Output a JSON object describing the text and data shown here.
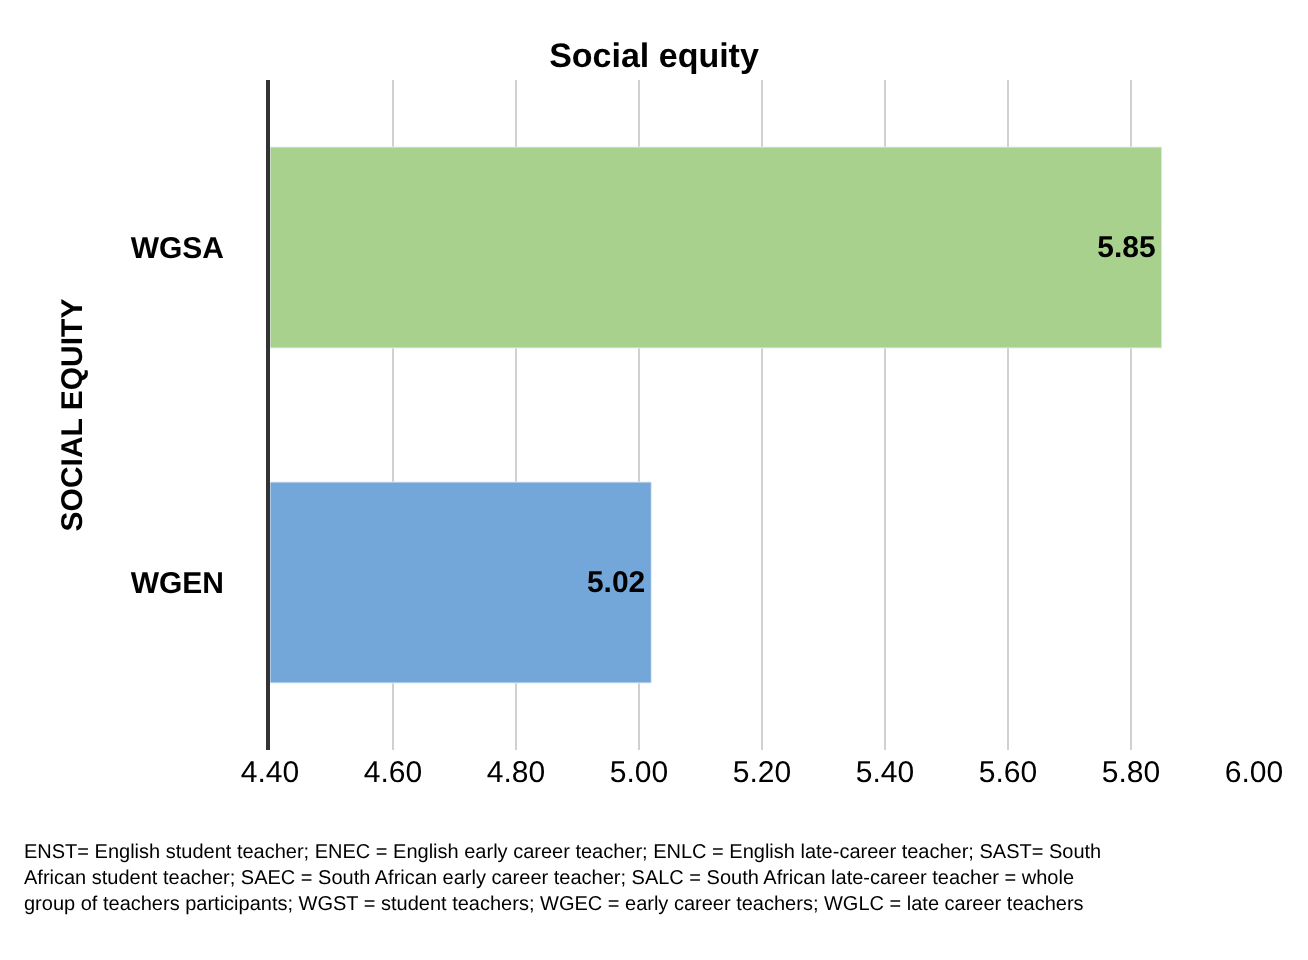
{
  "chart_data": {
    "type": "bar",
    "orientation": "horizontal",
    "title": "Social equity",
    "ylabel": "SOCIAL EQUITY",
    "categories": [
      "WGSA",
      "WGEN"
    ],
    "values": [
      5.85,
      5.02
    ],
    "colors": [
      "#a9d18e",
      "#73a7da"
    ],
    "data_labels": true,
    "xlim": [
      4.4,
      6.0
    ],
    "xticks": [
      {
        "value": 4.4,
        "label": "4.40"
      },
      {
        "value": 4.6,
        "label": "4.60"
      },
      {
        "value": 4.8,
        "label": "4.80"
      },
      {
        "value": 5.0,
        "label": "5.00"
      },
      {
        "value": 5.2,
        "label": "5.20"
      },
      {
        "value": 5.4,
        "label": "5.40"
      },
      {
        "value": 5.6,
        "label": "5.60"
      },
      {
        "value": 5.8,
        "label": "5.80"
      },
      {
        "value": 6.0,
        "label": "6.00"
      }
    ],
    "grid": "x",
    "legend": false,
    "annotations": [
      "ENST= English student teacher; ENEC = English early career teacher; ENLC = English late-career teacher; SAST= South African student teacher; SAEC = South African early career teacher; SALC = South African late-career teacher = whole group of teachers participants; WGST = student teachers; WGEC = early career teachers; WGLC = late career teachers"
    ]
  }
}
